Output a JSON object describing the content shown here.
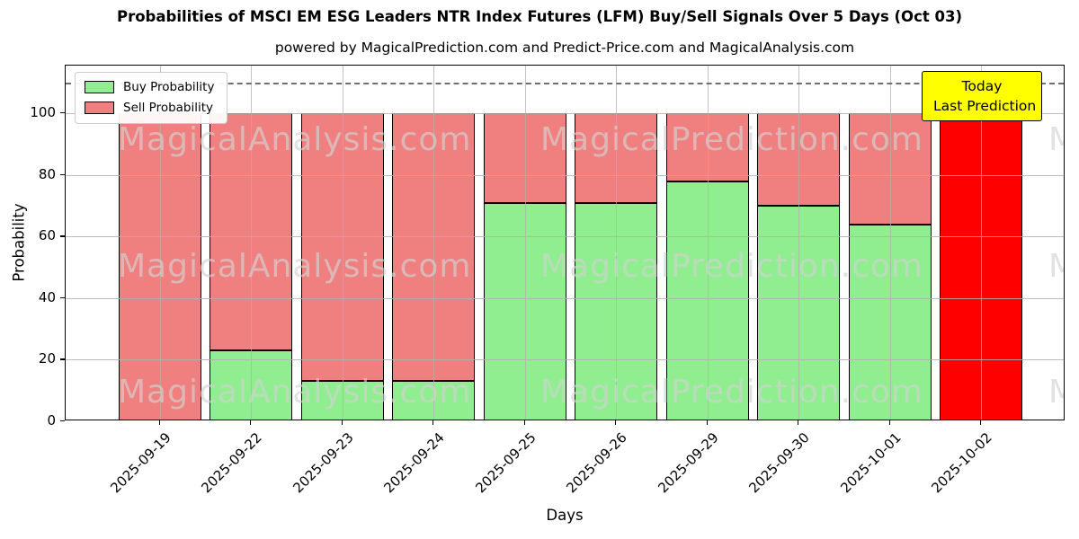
{
  "title": "Probabilities of MSCI EM ESG Leaders NTR Index Futures (LFM) Buy/Sell Signals Over 5 Days (Oct 03)",
  "subtitle": "powered by MagicalPrediction.com and Predict-Price.com and MagicalAnalysis.com",
  "legend": {
    "buy_label": "Buy Probability",
    "sell_label": "Sell Probability"
  },
  "annotation": {
    "line1": "Today",
    "line2": "Last Prediction",
    "bg_color": "#ffff00"
  },
  "watermarks": {
    "left_text": "MagicalAnalysis.com",
    "right_text": "MagicalPrediction.com"
  },
  "colors": {
    "buy": "#90EE90",
    "sell": "#F08080",
    "today_bar": "#FF0000",
    "grid": "#b0b0b0",
    "dashed_line": "#6e6e6e",
    "edge": "#000000"
  },
  "axes": {
    "xlabel": "Days",
    "ylabel": "Probability",
    "yticks": [
      0,
      20,
      40,
      60,
      80,
      100
    ]
  },
  "chart_data": {
    "type": "bar",
    "stacked": true,
    "title": "Probabilities of MSCI EM ESG Leaders NTR Index Futures (LFM) Buy/Sell Signals Over 5 Days (Oct 03)",
    "xlabel": "Days",
    "ylabel": "Probability",
    "categories": [
      "2025-09-19",
      "2025-09-22",
      "2025-09-23",
      "2025-09-24",
      "2025-09-25",
      "2025-09-26",
      "2025-09-29",
      "2025-09-30",
      "2025-10-01",
      "2025-10-02"
    ],
    "series": [
      {
        "name": "Buy Probability",
        "color": "#90EE90",
        "values": [
          0,
          23,
          13,
          13,
          71,
          71,
          78,
          70,
          64,
          0
        ]
      },
      {
        "name": "Sell Probability",
        "color": "#F08080",
        "values": [
          100,
          77,
          87,
          87,
          29,
          29,
          22,
          30,
          36,
          100
        ]
      }
    ],
    "today": {
      "index": 9,
      "color": "#FF0000",
      "note": "final bar drawn solid red for today's last prediction"
    },
    "ylim": [
      0,
      115.5
    ],
    "dashed_line_y": 110,
    "grid": true,
    "legend_position": "upper left"
  }
}
